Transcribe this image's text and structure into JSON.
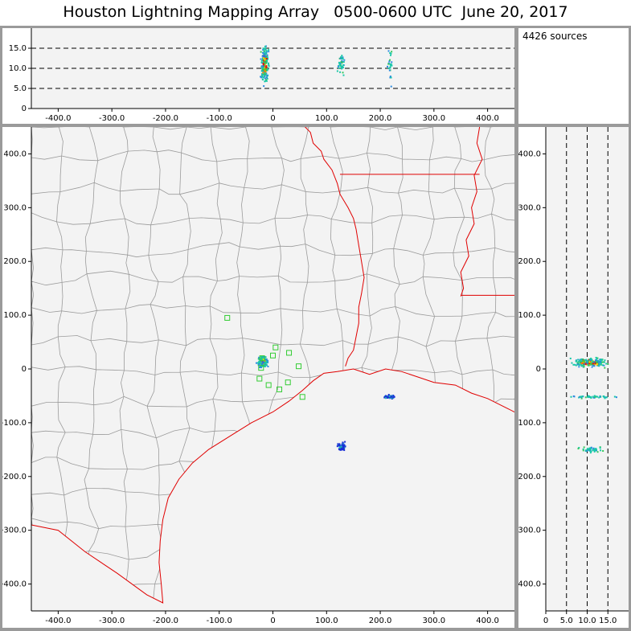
{
  "title": "Houston Lightning Mapping Array   0500-0600 UTC  June 20, 2017",
  "source_count": "4426 sources",
  "colors": {
    "frame": "#9a9a9a",
    "panel_bg": "#f3f3f3",
    "county_lines": "#9b9b9b",
    "state_lines": "#e00000",
    "stations": "#33cc33"
  },
  "chart_data": [
    {
      "type": "scatter",
      "panel": "altitude-vs-east-west",
      "xlabel": "",
      "ylabel": "",
      "xlim": [
        -450,
        450
      ],
      "ylim": [
        0,
        20
      ],
      "xticks": [
        -400,
        -300,
        -200,
        -100,
        0,
        100,
        200,
        300,
        400
      ],
      "xtick_labels": [
        "-400.0",
        "-300.0",
        "-200.0",
        "-100.0",
        "0",
        "100.0",
        "200.0",
        "300.0",
        "400.0"
      ],
      "yticks": [
        0,
        5,
        10,
        15
      ],
      "ytick_labels": [
        "0",
        "5.0",
        "10.0",
        "15.0"
      ],
      "reference_lines": [
        5,
        10,
        15
      ],
      "clusters": [
        {
          "x": -15,
          "y": 11,
          "sx": 3,
          "sy": 1.8,
          "n": 260,
          "intense": true
        },
        {
          "x": 128,
          "y": 11,
          "sx": 3,
          "sy": 1.2,
          "n": 40,
          "intense": false
        },
        {
          "x": 218,
          "y": 11,
          "sx": 3,
          "sy": 2.2,
          "n": 25,
          "intense": false
        }
      ]
    },
    {
      "type": "scatter",
      "panel": "plan-view-map",
      "xlabel": "",
      "ylabel": "",
      "xlim": [
        -450,
        450
      ],
      "ylim": [
        -450,
        450
      ],
      "xticks": [
        -400,
        -300,
        -200,
        -100,
        0,
        100,
        200,
        300,
        400
      ],
      "xtick_labels": [
        "-400.0",
        "-300.0",
        "-200.0",
        "-100.0",
        "0",
        "100.0",
        "200.0",
        "300.0",
        "400.0"
      ],
      "yticks": [
        -400,
        -300,
        -200,
        -100,
        0,
        100,
        200,
        300,
        400
      ],
      "ytick_labels": [
        "-400.0",
        "-300.0",
        "-200.0",
        "-100.0",
        "0",
        "100.0",
        "200.0",
        "300.0",
        "400.0"
      ],
      "clusters": [
        {
          "x": -18,
          "y": 13,
          "sx": 3.5,
          "sy": 4,
          "n": 230,
          "intense": true
        },
        {
          "x": 218,
          "y": -52,
          "sx": 5,
          "sy": 1.5,
          "n": 60,
          "intense": false,
          "deep": true
        },
        {
          "x": 128,
          "y": -145,
          "sx": 3.5,
          "sy": 4,
          "n": 70,
          "intense": false,
          "deep": true
        }
      ],
      "stations": [
        {
          "x": -85,
          "y": 95
        },
        {
          "x": -20,
          "y": 20
        },
        {
          "x": -22,
          "y": 2
        },
        {
          "x": 5,
          "y": 40
        },
        {
          "x": 0,
          "y": 25
        },
        {
          "x": 30,
          "y": 30
        },
        {
          "x": 48,
          "y": 5
        },
        {
          "x": -25,
          "y": -18
        },
        {
          "x": -8,
          "y": -30
        },
        {
          "x": 12,
          "y": -38
        },
        {
          "x": 28,
          "y": -25
        },
        {
          "x": 55,
          "y": -52
        }
      ]
    },
    {
      "type": "scatter",
      "panel": "north-south-vs-altitude",
      "xlabel": "",
      "ylabel": "",
      "xlim": [
        0,
        20
      ],
      "ylim": [
        -450,
        450
      ],
      "xticks": [
        0,
        5,
        10,
        15
      ],
      "xtick_labels": [
        "0",
        "5.0",
        "10.0",
        "15.0"
      ],
      "yticks": [
        -400,
        -300,
        -200,
        -100,
        0,
        100,
        200,
        300,
        400
      ],
      "ytick_labels": [
        "-400.0",
        "-300.0",
        "-200.0",
        "-100.0",
        "0",
        "100.0",
        "200.0",
        "300.0",
        "400.0"
      ],
      "reference_lines": [
        5,
        10,
        15
      ],
      "clusters": [
        {
          "x": 10.5,
          "y": 12,
          "sx": 1.8,
          "sy": 3.5,
          "n": 230,
          "intense": true
        },
        {
          "x": 11,
          "y": -52,
          "sx": 2.5,
          "sy": 1.2,
          "n": 45,
          "intense": false
        },
        {
          "x": 11,
          "y": -150,
          "sx": 1.5,
          "sy": 2.5,
          "n": 40,
          "intense": false
        }
      ]
    }
  ]
}
